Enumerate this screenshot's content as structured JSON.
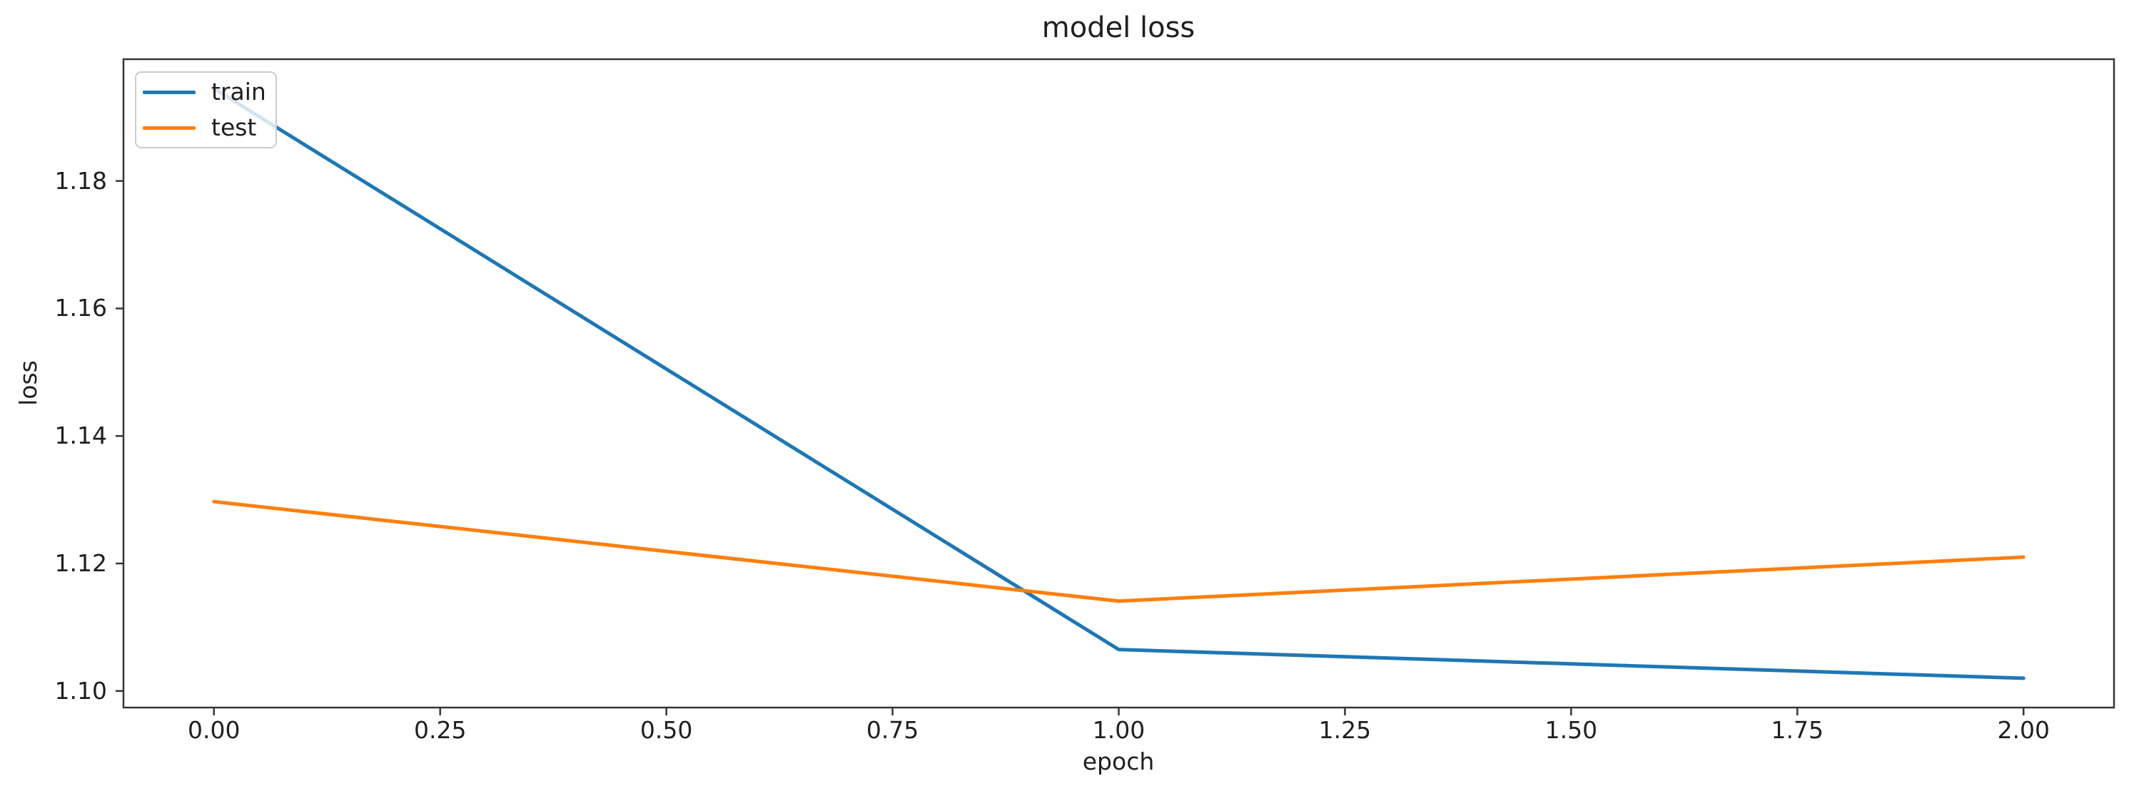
{
  "chart_data": {
    "type": "line",
    "title": "model loss",
    "xlabel": "epoch",
    "ylabel": "loss",
    "x": [
      0,
      1,
      2
    ],
    "series": [
      {
        "name": "train",
        "color": "#1f77b4",
        "values": [
          1.1945,
          1.1065,
          1.102
        ]
      },
      {
        "name": "test",
        "color": "#ff7f0e",
        "values": [
          1.1297,
          1.1141,
          1.121
        ]
      }
    ],
    "xlim": [
      -0.1,
      2.1
    ],
    "ylim": [
      1.0974,
      1.1991
    ],
    "xticks": {
      "values": [
        0.0,
        0.25,
        0.5,
        0.75,
        1.0,
        1.25,
        1.5,
        1.75,
        2.0
      ],
      "labels": [
        "0.00",
        "0.25",
        "0.50",
        "0.75",
        "1.00",
        "1.25",
        "1.50",
        "1.75",
        "2.00"
      ]
    },
    "yticks": {
      "values": [
        1.1,
        1.12,
        1.14,
        1.16,
        1.18
      ],
      "labels": [
        "1.10",
        "1.12",
        "1.14",
        "1.16",
        "1.18"
      ]
    },
    "grid": false,
    "legend": {
      "position": "upper-left",
      "entries": [
        "train",
        "test"
      ]
    }
  },
  "colors": {
    "axis": "#363636",
    "text": "#1f1f1f",
    "legend_border": "#cccccc",
    "background": "#ffffff"
  }
}
